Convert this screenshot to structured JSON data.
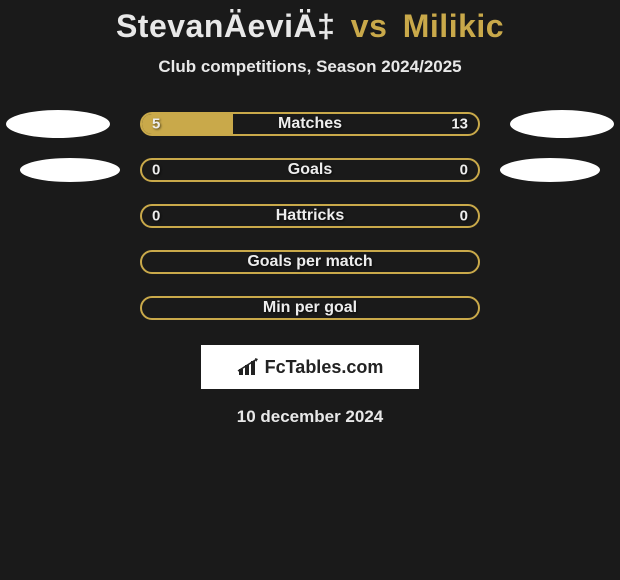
{
  "title": {
    "player1": "StevanÄeviÄ‡",
    "vs": "vs",
    "player2": "Milikic"
  },
  "subtitle": "Club competitions, Season 2024/2025",
  "rows": [
    {
      "label": "Matches",
      "left": "5",
      "right": "13",
      "fill_pct": 27,
      "show_values": true,
      "ellipse_left": true,
      "ellipse_right": true,
      "ellipse_small": false
    },
    {
      "label": "Goals",
      "left": "0",
      "right": "0",
      "fill_pct": 0,
      "show_values": true,
      "ellipse_left": true,
      "ellipse_right": true,
      "ellipse_small": true
    },
    {
      "label": "Hattricks",
      "left": "0",
      "right": "0",
      "fill_pct": 0,
      "show_values": true,
      "ellipse_left": false,
      "ellipse_right": false,
      "ellipse_small": false
    },
    {
      "label": "Goals per match",
      "left": "",
      "right": "",
      "fill_pct": 0,
      "show_values": false,
      "ellipse_left": false,
      "ellipse_right": false,
      "ellipse_small": false
    },
    {
      "label": "Min per goal",
      "left": "",
      "right": "",
      "fill_pct": 0,
      "show_values": false,
      "ellipse_left": false,
      "ellipse_right": false,
      "ellipse_small": false
    }
  ],
  "logo_text": "FcTables.com",
  "date": "10 december 2024",
  "colors": {
    "background": "#1a1a1a",
    "accent": "#c9a94a",
    "text": "#e8e8e8",
    "ellipse": "#ffffff"
  }
}
